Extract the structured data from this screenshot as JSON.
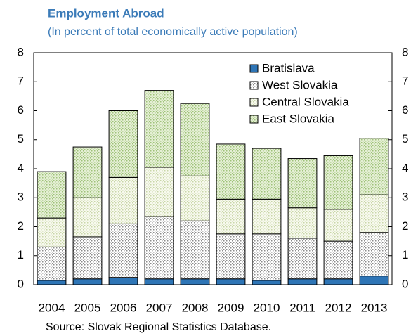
{
  "chart_data": {
    "type": "stacked-bar",
    "title": "Employment Abroad",
    "subtitle": "(In percent of total economically active population)",
    "source": "Source: Slovak Regional Statistics Database.",
    "categories": [
      "2004",
      "2005",
      "2006",
      "2007",
      "2008",
      "2009",
      "2010",
      "2011",
      "2012",
      "2013"
    ],
    "series": [
      {
        "name": "Bratislava",
        "color": "#2e75b6",
        "values": [
          0.15,
          0.2,
          0.25,
          0.2,
          0.2,
          0.2,
          0.15,
          0.2,
          0.2,
          0.3
        ]
      },
      {
        "name": "West Slovakia",
        "color": "#8c8c8c",
        "values": [
          1.15,
          1.45,
          1.85,
          2.15,
          2.0,
          1.55,
          1.6,
          1.4,
          1.3,
          1.5
        ]
      },
      {
        "name": "Central Slovakia",
        "color": "#c9d6a8",
        "values": [
          1.0,
          1.35,
          1.6,
          1.7,
          1.55,
          1.2,
          1.2,
          1.05,
          1.1,
          1.3
        ]
      },
      {
        "name": "East Slovakia",
        "color": "#9fc27a",
        "values": [
          1.6,
          1.75,
          2.3,
          2.65,
          2.5,
          1.9,
          1.75,
          1.7,
          1.85,
          1.95
        ]
      }
    ],
    "ylim": [
      0,
      8
    ],
    "yticks": [
      0,
      1,
      2,
      3,
      4,
      5,
      6,
      7,
      8
    ],
    "y2lim": [
      0,
      8
    ],
    "y2ticks": [
      0,
      1,
      2,
      3,
      4,
      5,
      6,
      7,
      8
    ],
    "legend": "top-right"
  }
}
